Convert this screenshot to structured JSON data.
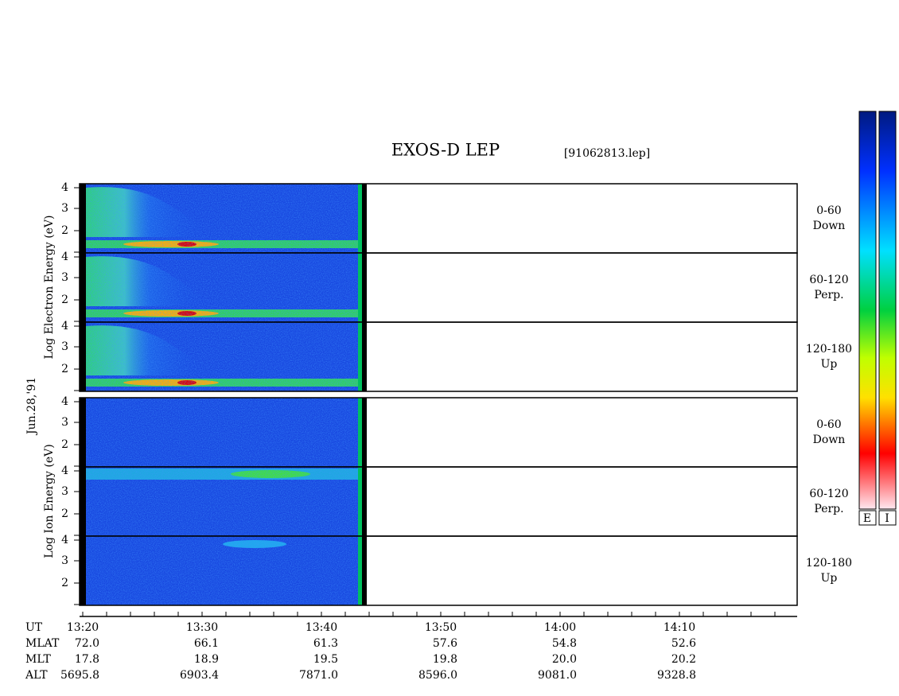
{
  "header": {
    "title": "EXOS-D LEP",
    "file": "[91062813.lep]"
  },
  "date": "Jun.28,'91",
  "electron": {
    "axis_label": "Log Electron Energy (eV)",
    "panels": [
      {
        "angle": "0-60",
        "direction": "Down"
      },
      {
        "angle": "60-120",
        "direction": "Perp."
      },
      {
        "angle": "120-180",
        "direction": "Up"
      }
    ]
  },
  "ion": {
    "axis_label": "Log Ion Energy (eV)",
    "panels": [
      {
        "angle": "0-60",
        "direction": "Down"
      },
      {
        "angle": "60-120",
        "direction": "Perp."
      },
      {
        "angle": "120-180",
        "direction": "Up"
      }
    ]
  },
  "energy_ticks": [
    "4",
    "3",
    "2"
  ],
  "time_axis": {
    "row_labels": [
      "UT",
      "MLAT",
      "MLT",
      "ALT"
    ],
    "columns": [
      [
        "13:20",
        "72.0",
        "17.8",
        "5695.8"
      ],
      [
        "13:30",
        "66.1",
        "18.9",
        "6903.4"
      ],
      [
        "13:40",
        "61.3",
        "19.5",
        "7871.0"
      ],
      [
        "13:50",
        "57.6",
        "19.8",
        "8596.0"
      ],
      [
        "14:00",
        "54.8",
        "20.0",
        "9081.0"
      ],
      [
        "14:10",
        "52.6",
        "20.2",
        "9328.8"
      ]
    ]
  },
  "colorbar_labels": [
    "E",
    "I"
  ]
}
